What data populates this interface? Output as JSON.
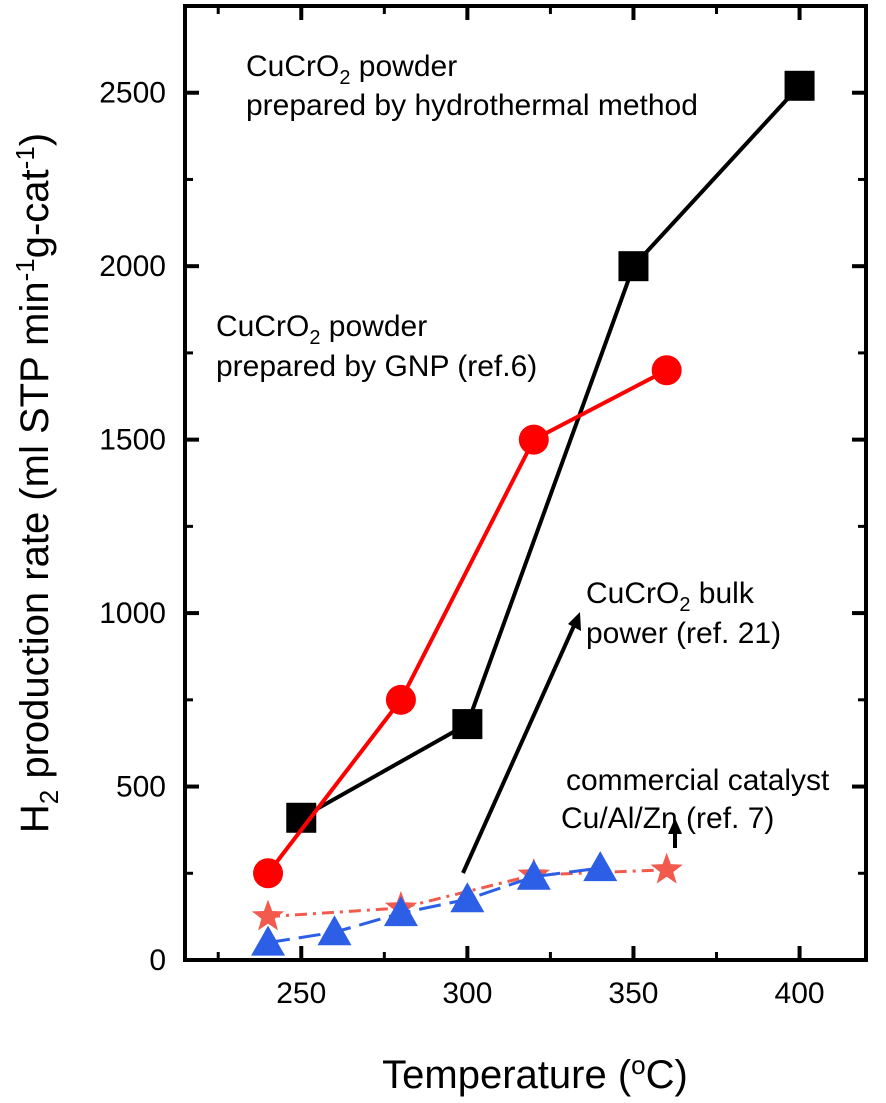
{
  "chart_data": {
    "type": "line",
    "xlabel": "Temperature (°C)",
    "ylabel": "H2 production rate (ml STP min-1 g-cat-1)",
    "xlim": [
      215,
      420
    ],
    "ylim": [
      0,
      2750
    ],
    "xticks": [
      250,
      300,
      350,
      400
    ],
    "yticks": [
      0,
      500,
      1000,
      1500,
      2000,
      2500
    ],
    "grid": false,
    "series": [
      {
        "marker": "square",
        "color": "#000000",
        "dash": "solid",
        "x": [
          250,
          300,
          350,
          400
        ],
        "y": [
          410,
          680,
          2000,
          2520
        ]
      },
      {
        "marker": "circle",
        "color": "#ff0000",
        "dash": "solid",
        "x": [
          240,
          280,
          320,
          360
        ],
        "y": [
          250,
          750,
          1500,
          1700
        ]
      },
      {
        "marker": "star",
        "color": "#f25a4e",
        "dash": "dashdot",
        "x": [
          240,
          280,
          320,
          360
        ],
        "y": [
          125,
          150,
          245,
          260
        ]
      },
      {
        "marker": "triangle",
        "color": "#2c5fe6",
        "dash": "dashed",
        "x": [
          240,
          260,
          280,
          300,
          320,
          340
        ],
        "y": [
          50,
          80,
          135,
          175,
          240,
          265
        ]
      }
    ],
    "annotations": [
      {
        "line1": "CuCrO",
        "sub": "2",
        "line1_end": " powder",
        "line2": "prepared by hydrothermal method"
      },
      {
        "line1": "CuCrO",
        "sub": "2",
        "line1_end": " powder",
        "line2": "prepared by GNP (ref.6)"
      },
      {
        "line1": "CuCrO",
        "sub": "2",
        "line1_end": " bulk",
        "line2": "power (ref. 21)"
      },
      {
        "line1": "commercial catalyst",
        "line2": "Cu/Al/Zn (ref. 7)"
      }
    ]
  }
}
